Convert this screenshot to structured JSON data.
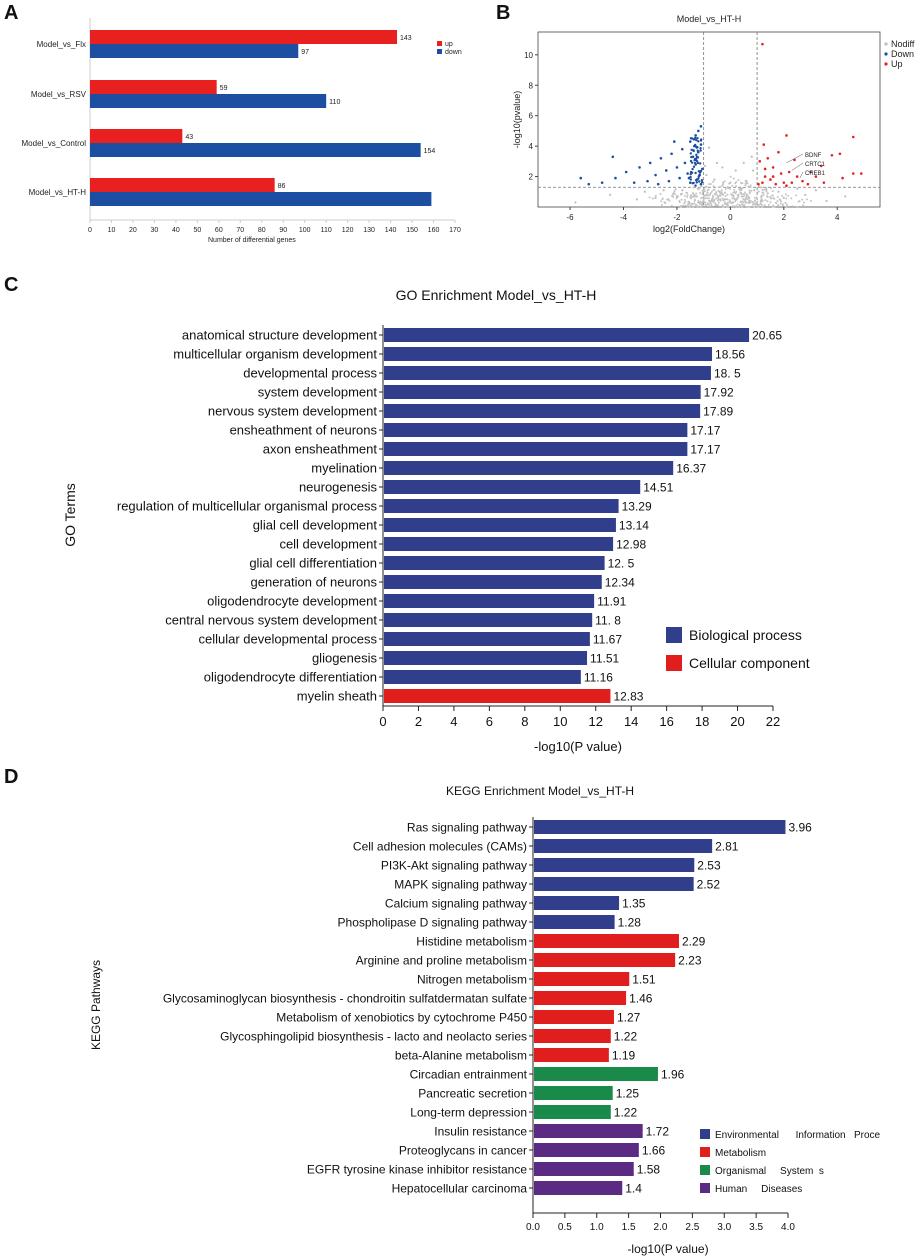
{
  "panels": {
    "a": "A",
    "b": "B",
    "c": "C",
    "d": "D"
  },
  "chart_data": [
    {
      "id": "A",
      "type": "bar",
      "orientation": "horizontal",
      "title": "",
      "xlabel": "Number of differential genes",
      "ylabel": "",
      "categories": [
        "Model_vs_Flx",
        "Model_vs_RSV",
        "Model_vs_Control",
        "Model_vs_HT-H"
      ],
      "series": [
        {
          "name": "up",
          "color": "#e8201f",
          "values": [
            143,
            59,
            43,
            86
          ]
        },
        {
          "name": "down",
          "color": "#1c4fa1",
          "values": [
            97,
            110,
            154,
            159
          ]
        }
      ],
      "value_labels": [
        [
          "143",
          "97"
        ],
        [
          "59",
          "110"
        ],
        [
          "43",
          "154"
        ],
        [
          "86",
          ""
        ]
      ],
      "xlim": [
        0,
        170
      ],
      "xticks": [
        "0",
        "10",
        "20",
        "30",
        "40",
        "50",
        "60",
        "70",
        "80",
        "90",
        "100",
        "110",
        "120",
        "130",
        "140",
        "150",
        "160",
        "170"
      ]
    },
    {
      "id": "B",
      "type": "scatter",
      "title": "Model_vs_HT-H",
      "xlabel": "log2(FoldChange)",
      "ylabel": "-log10(pvalue)",
      "xlim": [
        -7.2,
        5.6
      ],
      "ylim": [
        0,
        11.5
      ],
      "xticks": [
        "-6",
        "-4",
        "-2",
        "0",
        "2",
        "4"
      ],
      "yticks": [
        "2",
        "4",
        "6",
        "8",
        "10"
      ],
      "thresholds": {
        "log2fc": [
          -1,
          1
        ],
        "neglog10p": 1.3
      },
      "legend": [
        {
          "name": "Nodiff",
          "color": "#bdbdbd"
        },
        {
          "name": "Down",
          "color": "#1c4fa1"
        },
        {
          "name": "Up",
          "color": "#e8201f"
        }
      ],
      "annotations": [
        {
          "label": "BDNF",
          "x": 2.1,
          "y": 2.9
        },
        {
          "label": "CRTC1",
          "x": 2.3,
          "y": 2.4
        },
        {
          "label": "CREB1",
          "x": 2.6,
          "y": 1.9
        }
      ],
      "points": {
        "up": [
          [
            1.2,
            10.7
          ],
          [
            4.6,
            4.6
          ],
          [
            4.1,
            3.5
          ],
          [
            4.6,
            2.2
          ],
          [
            4.9,
            2.2
          ],
          [
            2.1,
            4.7
          ],
          [
            1.3,
            2.5
          ],
          [
            1.6,
            2.0
          ],
          [
            1.9,
            2.2
          ],
          [
            2.2,
            2.3
          ],
          [
            3.2,
            2.0
          ],
          [
            3.8,
            3.4
          ],
          [
            1.1,
            3.0
          ],
          [
            1.4,
            3.2
          ],
          [
            1.8,
            3.6
          ],
          [
            2.4,
            3.1
          ],
          [
            1.2,
            1.6
          ],
          [
            1.5,
            1.8
          ],
          [
            2.7,
            1.7
          ],
          [
            3.0,
            2.3
          ],
          [
            4.2,
            1.9
          ],
          [
            1.05,
            1.5
          ],
          [
            1.7,
            1.5
          ],
          [
            2.0,
            1.6
          ],
          [
            2.5,
            2.0
          ],
          [
            3.5,
            1.6
          ],
          [
            1.3,
            2.0
          ],
          [
            1.6,
            2.6
          ],
          [
            2.3,
            1.6
          ],
          [
            2.1,
            1.4
          ],
          [
            2.9,
            1.5
          ],
          [
            1.25,
            4.1
          ],
          [
            3.4,
            2.7
          ]
        ],
        "down": [
          [
            -1.1,
            5.3
          ],
          [
            -1.2,
            5.0
          ],
          [
            -1.3,
            4.7
          ],
          [
            -1.5,
            4.3
          ],
          [
            -1.8,
            3.8
          ],
          [
            -2.2,
            3.5
          ],
          [
            -2.6,
            3.2
          ],
          [
            -3.0,
            2.9
          ],
          [
            -3.4,
            2.6
          ],
          [
            -3.9,
            2.3
          ],
          [
            -4.3,
            1.9
          ],
          [
            -4.8,
            1.6
          ],
          [
            -5.3,
            1.5
          ],
          [
            -5.6,
            1.9
          ],
          [
            -1.4,
            3.3
          ],
          [
            -1.7,
            2.9
          ],
          [
            -2.0,
            2.6
          ],
          [
            -2.4,
            2.4
          ],
          [
            -2.8,
            2.1
          ],
          [
            -1.1,
            4.1
          ],
          [
            -1.2,
            3.6
          ],
          [
            -1.3,
            2.8
          ],
          [
            -1.6,
            2.2
          ],
          [
            -1.9,
            1.9
          ],
          [
            -2.3,
            1.7
          ],
          [
            -1.05,
            2.5
          ],
          [
            -1.15,
            2.1
          ],
          [
            -1.25,
            1.8
          ],
          [
            -1.5,
            1.6
          ],
          [
            -2.7,
            1.5
          ],
          [
            -3.1,
            1.7
          ],
          [
            -4.4,
            3.3
          ],
          [
            -1.1,
            1.5
          ],
          [
            -1.35,
            4.0
          ],
          [
            -2.1,
            4.3
          ],
          [
            -1.55,
            1.9
          ],
          [
            -3.6,
            1.6
          ]
        ],
        "nodiff": [
          [
            -0.8,
            3.9
          ],
          [
            -0.5,
            2.9
          ],
          [
            -0.3,
            2.6
          ],
          [
            0.2,
            2.4
          ],
          [
            0.5,
            2.9
          ],
          [
            0.8,
            3.3
          ],
          [
            -0.9,
            2.1
          ],
          [
            0.0,
            1.6
          ],
          [
            -0.6,
            1.8
          ],
          [
            0.6,
            1.7
          ],
          [
            -0.4,
            1.0
          ],
          [
            0.3,
            0.8
          ],
          [
            -0.2,
            0.5
          ],
          [
            0.1,
            0.3
          ],
          [
            0.7,
            0.6
          ],
          [
            -0.7,
            0.4
          ],
          [
            0.9,
            1.1
          ],
          [
            -1.4,
            0.9
          ],
          [
            -2.0,
            0.7
          ],
          [
            -2.8,
            0.6
          ],
          [
            -3.5,
            0.5
          ],
          [
            -4.5,
            0.8
          ],
          [
            -5.8,
            0.3
          ],
          [
            1.4,
            0.9
          ],
          [
            2.0,
            0.6
          ],
          [
            2.8,
            0.8
          ],
          [
            3.6,
            0.4
          ],
          [
            4.3,
            0.7
          ],
          [
            -1.8,
            1.1
          ],
          [
            1.8,
            1.0
          ],
          [
            -0.1,
            1.3
          ],
          [
            0.4,
            1.2
          ],
          [
            -1.2,
            0.3
          ],
          [
            1.2,
            0.4
          ],
          [
            -2.5,
            1.1
          ],
          [
            2.5,
            1.2
          ],
          [
            -3.2,
            1.0
          ],
          [
            3.2,
            1.1
          ],
          [
            0.85,
            2.4
          ],
          [
            -0.95,
            2.7
          ]
        ]
      }
    },
    {
      "id": "C",
      "type": "bar",
      "orientation": "horizontal",
      "title": "GO Enrichment Model_vs_HT-H",
      "xlabel": "-log10(P value)",
      "ylabel": "GO Terms",
      "xlim": [
        0,
        22
      ],
      "xticks": [
        "0",
        "2",
        "4",
        "6",
        "8",
        "10",
        "12",
        "14",
        "16",
        "18",
        "20",
        "22"
      ],
      "legend": [
        {
          "name": "Biological process",
          "color": "#313e8b"
        },
        {
          "name": "Cellular component",
          "color": "#e01e1e"
        }
      ],
      "categories": [
        "anatomical structure development",
        "multicellular organism development",
        "developmental process",
        "system development",
        "nervous system development",
        "ensheathment of neurons",
        "axon ensheathment",
        "myelination",
        "neurogenesis",
        "regulation of multicellular organismal process",
        "glial cell development",
        "cell development",
        "glial cell differentiation",
        "generation of neurons",
        "oligodendrocyte development",
        "central nervous system development",
        "cellular developmental process",
        "gliogenesis",
        "oligodendrocyte differentiation",
        "myelin sheath"
      ],
      "values": [
        20.65,
        18.56,
        18.5,
        17.92,
        17.89,
        17.17,
        17.17,
        16.37,
        14.51,
        13.29,
        13.14,
        12.98,
        12.5,
        12.34,
        11.91,
        11.8,
        11.67,
        11.51,
        11.16,
        12.83
      ],
      "value_labels": [
        "20.65",
        "18.56",
        "18. 5",
        "17.92",
        "17.89",
        "17.17",
        "17.17",
        "16.37",
        "14.51",
        "13.29",
        "13.14",
        "12.98",
        "12. 5",
        "12.34",
        "11.91",
        "11. 8",
        "11.67",
        "11.51",
        "11.16",
        "12.83"
      ],
      "groups": [
        0,
        0,
        0,
        0,
        0,
        0,
        0,
        0,
        0,
        0,
        0,
        0,
        0,
        0,
        0,
        0,
        0,
        0,
        0,
        1
      ]
    },
    {
      "id": "D",
      "type": "bar",
      "orientation": "horizontal",
      "title": "KEGG Enrichment Model_vs_HT-H",
      "xlabel": "-log10(P value)",
      "ylabel": "KEGG Pathways",
      "xlim": [
        0,
        4.0
      ],
      "xticks": [
        "0.0",
        "0.5",
        "1.0",
        "1.5",
        "2.0",
        "2.5",
        "3.0",
        "3.5",
        "4.0"
      ],
      "legend": [
        {
          "name": "Environmental      Information   Proce",
          "color": "#313e8b"
        },
        {
          "name": "Metabolism",
          "color": "#e01e1e"
        },
        {
          "name": "Organismal     System  s",
          "color": "#1a8a4a"
        },
        {
          "name": "Human     Diseases",
          "color": "#5b2a82"
        }
      ],
      "categories": [
        "Ras signaling pathway",
        "Cell adhesion molecules (CAMs)",
        "PI3K-Akt signaling pathway",
        "MAPK signaling pathway",
        "Calcium signaling pathway",
        "Phospholipase D signaling pathway",
        "Histidine metabolism",
        "Arginine and proline metabolism",
        "Nitrogen metabolism",
        "Glycosaminoglycan biosynthesis - chondroitin sulfatdermatan sulfate",
        "Metabolism of xenobiotics by cytochrome P450",
        "Glycosphingolipid biosynthesis - lacto and neolacto series",
        "beta-Alanine metabolism",
        "Circadian entrainment",
        "Pancreatic secretion",
        "Long-term depression",
        "Insulin resistance",
        "Proteoglycans in cancer",
        "EGFR tyrosine kinase inhibitor resistance",
        "Hepatocellular carcinoma"
      ],
      "values": [
        3.96,
        2.81,
        2.53,
        2.52,
        1.35,
        1.28,
        2.29,
        2.23,
        1.51,
        1.46,
        1.27,
        1.22,
        1.19,
        1.96,
        1.25,
        1.22,
        1.72,
        1.66,
        1.58,
        1.4
      ],
      "value_labels": [
        "3.96",
        "2.81",
        "2.53",
        "2.52",
        "1.35",
        "1.28",
        "2.29",
        "2.23",
        "1.51",
        "1.46",
        "1.27",
        "1.22",
        "1.19",
        "1.96",
        "1.25",
        "1.22",
        "1.72",
        "1.66",
        "1.58",
        "1.4"
      ],
      "groups": [
        0,
        0,
        0,
        0,
        0,
        0,
        1,
        1,
        1,
        1,
        1,
        1,
        1,
        2,
        2,
        2,
        3,
        3,
        3,
        3
      ]
    }
  ]
}
